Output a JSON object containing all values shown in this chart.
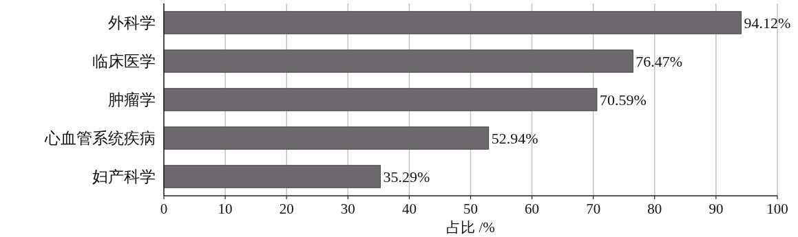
{
  "chart_data": {
    "type": "bar",
    "orientation": "horizontal",
    "xlabel": "占比 /%",
    "categories": [
      "外科学",
      "临床医学",
      "肿瘤学",
      "心血管系统疾病",
      "妇产科学"
    ],
    "values": [
      94.12,
      76.47,
      70.59,
      52.94,
      35.29
    ],
    "value_labels": [
      "94.12%",
      "76.47%",
      "70.59%",
      "52.94%",
      "35.29%"
    ],
    "color": "#6e696e",
    "xlim": [
      0,
      100
    ],
    "xticks": [
      0,
      10,
      20,
      30,
      40,
      50,
      60,
      70,
      80,
      90,
      100
    ],
    "grid": "x"
  }
}
